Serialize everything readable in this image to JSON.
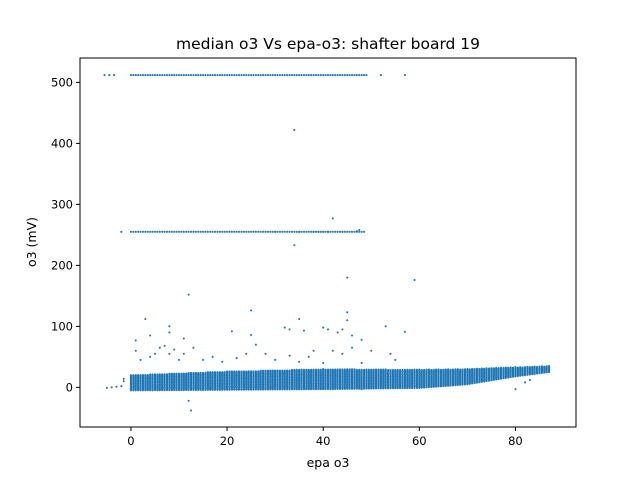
{
  "chart_data": {
    "type": "scatter",
    "title": "median o3 Vs epa-o3: shafter board 19",
    "xlabel": "epa o3",
    "ylabel": "o3 (mV)",
    "xlim": [
      -10.6,
      92.6
    ],
    "ylim": [
      -65,
      540
    ],
    "xticks": [
      0,
      20,
      40,
      60,
      80
    ],
    "yticks": [
      0,
      100,
      200,
      300,
      400,
      500
    ],
    "grid": false,
    "marker_color": "#1f77b4",
    "series": [
      {
        "name": "median o3",
        "band": {
          "x_min": 0,
          "x_max": 87,
          "x_step": 0.5,
          "lower": [
            [
              0,
              -5
            ],
            [
              20,
              -4
            ],
            [
              40,
              -3
            ],
            [
              60,
              -1
            ],
            [
              70,
              5
            ],
            [
              80,
              18
            ],
            [
              87,
              25
            ]
          ],
          "upper": [
            [
              0,
              20
            ],
            [
              20,
              26
            ],
            [
              40,
              30
            ],
            [
              60,
              29
            ],
            [
              70,
              30
            ],
            [
              80,
              33
            ],
            [
              87,
              35
            ]
          ]
        },
        "lines": [
          {
            "y": 512,
            "x_min": 0,
            "x_max": 49,
            "x_step": 0.5
          },
          {
            "y": 255,
            "x_min": 0,
            "x_max": 48.5,
            "x_step": 0.5
          }
        ],
        "points": [
          [
            -5.5,
            512
          ],
          [
            -4.5,
            512
          ],
          [
            -3.5,
            512
          ],
          [
            52,
            512
          ],
          [
            57,
            512
          ],
          [
            -2.0,
            255
          ],
          [
            30,
            255
          ],
          [
            35,
            255
          ],
          [
            38,
            255
          ],
          [
            39,
            255
          ],
          [
            40,
            255
          ],
          [
            41,
            255
          ],
          [
            44,
            255
          ],
          [
            47,
            256
          ],
          [
            47.5,
            258
          ],
          [
            34,
            422
          ],
          [
            42,
            277
          ],
          [
            34,
            233
          ],
          [
            45,
            180
          ],
          [
            59,
            176
          ],
          [
            12,
            152
          ],
          [
            25,
            126
          ],
          [
            45,
            123
          ],
          [
            3,
            112
          ],
          [
            35,
            112
          ],
          [
            45,
            110
          ],
          [
            8,
            100
          ],
          [
            32,
            98
          ],
          [
            40,
            98
          ],
          [
            53,
            100
          ],
          [
            21,
            92
          ],
          [
            57,
            91
          ],
          [
            1,
            77
          ],
          [
            4,
            85
          ],
          [
            8,
            90
          ],
          [
            11,
            80
          ],
          [
            25,
            86
          ],
          [
            33,
            95
          ],
          [
            36,
            93
          ],
          [
            41,
            95
          ],
          [
            43,
            90
          ],
          [
            44,
            95
          ],
          [
            46,
            85
          ],
          [
            48,
            78
          ],
          [
            1,
            60
          ],
          [
            2,
            45
          ],
          [
            4,
            50
          ],
          [
            5,
            55
          ],
          [
            6,
            65
          ],
          [
            7,
            68
          ],
          [
            8,
            55
          ],
          [
            9,
            62
          ],
          [
            10,
            45
          ],
          [
            11,
            55
          ],
          [
            13,
            65
          ],
          [
            15,
            45
          ],
          [
            17,
            50
          ],
          [
            19,
            42
          ],
          [
            22,
            48
          ],
          [
            24,
            55
          ],
          [
            26,
            70
          ],
          [
            28,
            55
          ],
          [
            30,
            45
          ],
          [
            33,
            52
          ],
          [
            35,
            42
          ],
          [
            37,
            50
          ],
          [
            38,
            60
          ],
          [
            40,
            40
          ],
          [
            42,
            60
          ],
          [
            44,
            55
          ],
          [
            46,
            65
          ],
          [
            48,
            40
          ],
          [
            50,
            60
          ],
          [
            54,
            55
          ],
          [
            55,
            45
          ],
          [
            -1.5,
            10
          ],
          [
            -1.5,
            14
          ],
          [
            -2,
            2
          ],
          [
            -3,
            1
          ],
          [
            -4,
            0
          ],
          [
            -5,
            -1
          ],
          [
            12,
            -22
          ],
          [
            12.5,
            -38
          ],
          [
            80,
            -3
          ],
          [
            82,
            8
          ],
          [
            83,
            12
          ],
          [
            36,
            0
          ],
          [
            38,
            -2
          ],
          [
            40,
            -1
          ],
          [
            42,
            -3
          ],
          [
            44,
            -2
          ],
          [
            46,
            -1
          ],
          [
            48,
            -3
          ]
        ]
      }
    ]
  }
}
